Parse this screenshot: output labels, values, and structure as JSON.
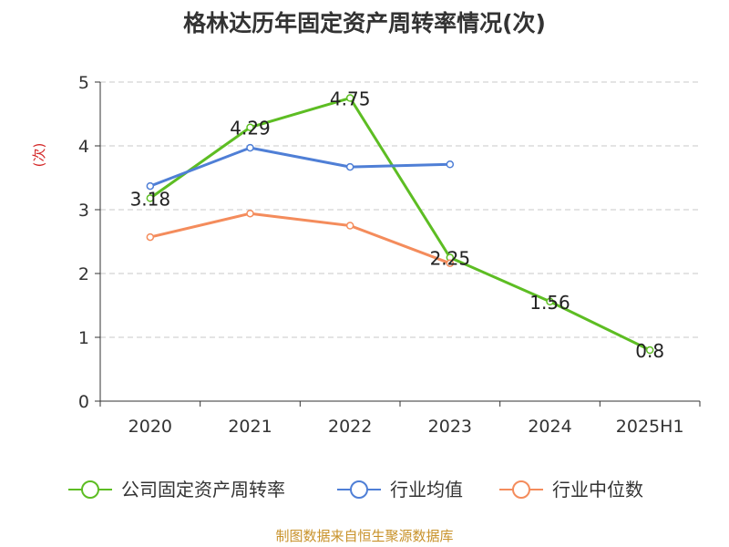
{
  "chart_data": {
    "type": "line",
    "title": "格林达历年固定资产周转率情况(次)",
    "ylabel": "(次)",
    "xlabel": "",
    "categories": [
      "2020",
      "2021",
      "2022",
      "2023",
      "2024",
      "2025H1"
    ],
    "ylim": [
      0,
      5
    ],
    "yticks": [
      "0",
      "1",
      "2",
      "3",
      "4",
      "5"
    ],
    "grid": true,
    "legend_position": "bottom",
    "series": [
      {
        "name": "公司固定资产周转率",
        "color": "#5dbd23",
        "values": [
          3.18,
          4.29,
          4.75,
          2.25,
          1.56,
          0.8
        ],
        "labels": [
          "3.18",
          "4.29",
          "4.75",
          "2.25",
          "1.56",
          "0.8"
        ]
      },
      {
        "name": "行业均值",
        "color": "#4f7fd6",
        "values": [
          3.37,
          3.97,
          3.67,
          3.71,
          null,
          null
        ]
      },
      {
        "name": "行业中位数",
        "color": "#f48c5c",
        "values": [
          2.57,
          2.94,
          2.75,
          2.16,
          null,
          null
        ]
      }
    ]
  },
  "source": "制图数据来自恒生聚源数据库"
}
